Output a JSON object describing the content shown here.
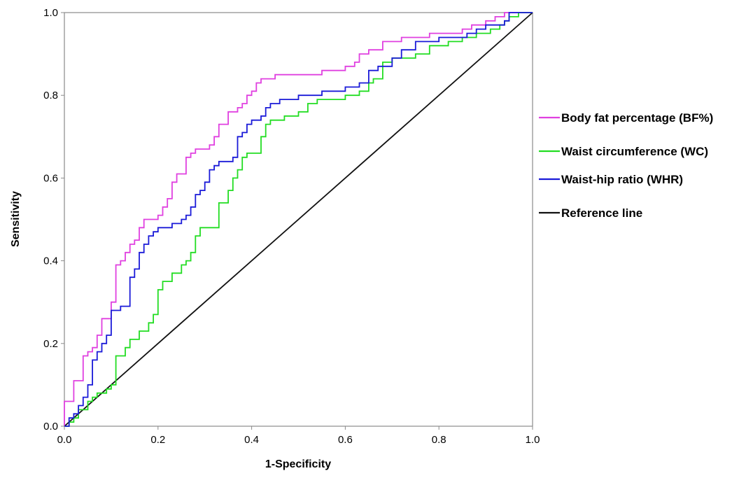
{
  "chart_data": {
    "type": "line",
    "title": "",
    "xlabel": "1-Specificity",
    "ylabel": "Sensitivity",
    "xlim": [
      0,
      1
    ],
    "ylim": [
      0,
      1
    ],
    "xticks": [
      "0.0",
      "0.2",
      "0.4",
      "0.6",
      "0.8",
      "1.0"
    ],
    "yticks": [
      "0.0",
      "0.2",
      "0.4",
      "0.6",
      "0.8",
      "1.0"
    ],
    "grid": false,
    "legend_position": "right",
    "series": [
      {
        "name": "Body fat percentage (BF%)",
        "color": "#e040e0",
        "step": true,
        "points": [
          [
            0.0,
            0.0
          ],
          [
            0.0,
            0.06
          ],
          [
            0.02,
            0.06
          ],
          [
            0.02,
            0.11
          ],
          [
            0.04,
            0.11
          ],
          [
            0.04,
            0.17
          ],
          [
            0.05,
            0.18
          ],
          [
            0.06,
            0.19
          ],
          [
            0.07,
            0.2
          ],
          [
            0.07,
            0.22
          ],
          [
            0.08,
            0.22
          ],
          [
            0.08,
            0.26
          ],
          [
            0.09,
            0.26
          ],
          [
            0.1,
            0.28
          ],
          [
            0.1,
            0.3
          ],
          [
            0.11,
            0.39
          ],
          [
            0.12,
            0.4
          ],
          [
            0.13,
            0.42
          ],
          [
            0.14,
            0.44
          ],
          [
            0.15,
            0.45
          ],
          [
            0.16,
            0.48
          ],
          [
            0.17,
            0.5
          ],
          [
            0.19,
            0.5
          ],
          [
            0.2,
            0.51
          ],
          [
            0.21,
            0.53
          ],
          [
            0.22,
            0.55
          ],
          [
            0.23,
            0.59
          ],
          [
            0.24,
            0.61
          ],
          [
            0.26,
            0.65
          ],
          [
            0.27,
            0.66
          ],
          [
            0.28,
            0.67
          ],
          [
            0.3,
            0.67
          ],
          [
            0.31,
            0.68
          ],
          [
            0.32,
            0.7
          ],
          [
            0.33,
            0.73
          ],
          [
            0.34,
            0.73
          ],
          [
            0.35,
            0.76
          ],
          [
            0.37,
            0.77
          ],
          [
            0.38,
            0.78
          ],
          [
            0.39,
            0.8
          ],
          [
            0.4,
            0.81
          ],
          [
            0.41,
            0.83
          ],
          [
            0.42,
            0.84
          ],
          [
            0.45,
            0.85
          ],
          [
            0.55,
            0.86
          ],
          [
            0.6,
            0.87
          ],
          [
            0.62,
            0.88
          ],
          [
            0.63,
            0.9
          ],
          [
            0.65,
            0.91
          ],
          [
            0.68,
            0.93
          ],
          [
            0.72,
            0.94
          ],
          [
            0.78,
            0.95
          ],
          [
            0.85,
            0.96
          ],
          [
            0.87,
            0.97
          ],
          [
            0.9,
            0.98
          ],
          [
            0.92,
            0.99
          ],
          [
            0.94,
            1.0
          ],
          [
            1.0,
            1.0
          ]
        ]
      },
      {
        "name": "Waist circumference (WC)",
        "color": "#22dd22",
        "step": true,
        "points": [
          [
            0.0,
            0.0
          ],
          [
            0.01,
            0.01
          ],
          [
            0.02,
            0.02
          ],
          [
            0.03,
            0.04
          ],
          [
            0.05,
            0.06
          ],
          [
            0.06,
            0.07
          ],
          [
            0.07,
            0.08
          ],
          [
            0.09,
            0.09
          ],
          [
            0.1,
            0.1
          ],
          [
            0.11,
            0.17
          ],
          [
            0.13,
            0.19
          ],
          [
            0.14,
            0.21
          ],
          [
            0.16,
            0.23
          ],
          [
            0.18,
            0.25
          ],
          [
            0.19,
            0.27
          ],
          [
            0.2,
            0.33
          ],
          [
            0.21,
            0.35
          ],
          [
            0.23,
            0.37
          ],
          [
            0.25,
            0.39
          ],
          [
            0.26,
            0.4
          ],
          [
            0.27,
            0.42
          ],
          [
            0.28,
            0.46
          ],
          [
            0.29,
            0.48
          ],
          [
            0.32,
            0.48
          ],
          [
            0.33,
            0.54
          ],
          [
            0.35,
            0.57
          ],
          [
            0.36,
            0.6
          ],
          [
            0.37,
            0.62
          ],
          [
            0.38,
            0.65
          ],
          [
            0.39,
            0.66
          ],
          [
            0.41,
            0.66
          ],
          [
            0.42,
            0.7
          ],
          [
            0.43,
            0.73
          ],
          [
            0.44,
            0.74
          ],
          [
            0.47,
            0.75
          ],
          [
            0.5,
            0.76
          ],
          [
            0.52,
            0.78
          ],
          [
            0.54,
            0.79
          ],
          [
            0.6,
            0.8
          ],
          [
            0.63,
            0.81
          ],
          [
            0.65,
            0.83
          ],
          [
            0.66,
            0.84
          ],
          [
            0.68,
            0.88
          ],
          [
            0.7,
            0.89
          ],
          [
            0.75,
            0.9
          ],
          [
            0.78,
            0.92
          ],
          [
            0.82,
            0.93
          ],
          [
            0.85,
            0.94
          ],
          [
            0.88,
            0.95
          ],
          [
            0.91,
            0.96
          ],
          [
            0.93,
            0.97
          ],
          [
            0.94,
            0.98
          ],
          [
            0.95,
            0.99
          ],
          [
            0.97,
            1.0
          ],
          [
            1.0,
            1.0
          ]
        ]
      },
      {
        "name": "Waist-hip ratio (WHR)",
        "color": "#1a1ad8",
        "step": true,
        "points": [
          [
            0.0,
            0.0
          ],
          [
            0.01,
            0.02
          ],
          [
            0.02,
            0.03
          ],
          [
            0.03,
            0.05
          ],
          [
            0.04,
            0.07
          ],
          [
            0.05,
            0.1
          ],
          [
            0.06,
            0.16
          ],
          [
            0.07,
            0.18
          ],
          [
            0.08,
            0.2
          ],
          [
            0.09,
            0.22
          ],
          [
            0.1,
            0.28
          ],
          [
            0.12,
            0.29
          ],
          [
            0.14,
            0.29
          ],
          [
            0.14,
            0.36
          ],
          [
            0.15,
            0.38
          ],
          [
            0.16,
            0.42
          ],
          [
            0.17,
            0.44
          ],
          [
            0.18,
            0.46
          ],
          [
            0.19,
            0.47
          ],
          [
            0.2,
            0.48
          ],
          [
            0.23,
            0.49
          ],
          [
            0.25,
            0.5
          ],
          [
            0.26,
            0.51
          ],
          [
            0.27,
            0.53
          ],
          [
            0.28,
            0.56
          ],
          [
            0.29,
            0.57
          ],
          [
            0.3,
            0.59
          ],
          [
            0.31,
            0.62
          ],
          [
            0.32,
            0.63
          ],
          [
            0.33,
            0.64
          ],
          [
            0.36,
            0.65
          ],
          [
            0.37,
            0.7
          ],
          [
            0.38,
            0.71
          ],
          [
            0.39,
            0.73
          ],
          [
            0.4,
            0.74
          ],
          [
            0.42,
            0.75
          ],
          [
            0.43,
            0.77
          ],
          [
            0.44,
            0.78
          ],
          [
            0.46,
            0.79
          ],
          [
            0.5,
            0.8
          ],
          [
            0.55,
            0.81
          ],
          [
            0.6,
            0.82
          ],
          [
            0.63,
            0.83
          ],
          [
            0.65,
            0.86
          ],
          [
            0.67,
            0.87
          ],
          [
            0.7,
            0.89
          ],
          [
            0.72,
            0.91
          ],
          [
            0.75,
            0.93
          ],
          [
            0.8,
            0.94
          ],
          [
            0.86,
            0.95
          ],
          [
            0.88,
            0.96
          ],
          [
            0.9,
            0.97
          ],
          [
            0.94,
            0.98
          ],
          [
            0.95,
            1.0
          ],
          [
            1.0,
            1.0
          ]
        ]
      },
      {
        "name": "Reference line",
        "color": "#111111",
        "step": false,
        "points": [
          [
            0,
            0
          ],
          [
            1,
            1
          ]
        ]
      }
    ]
  }
}
